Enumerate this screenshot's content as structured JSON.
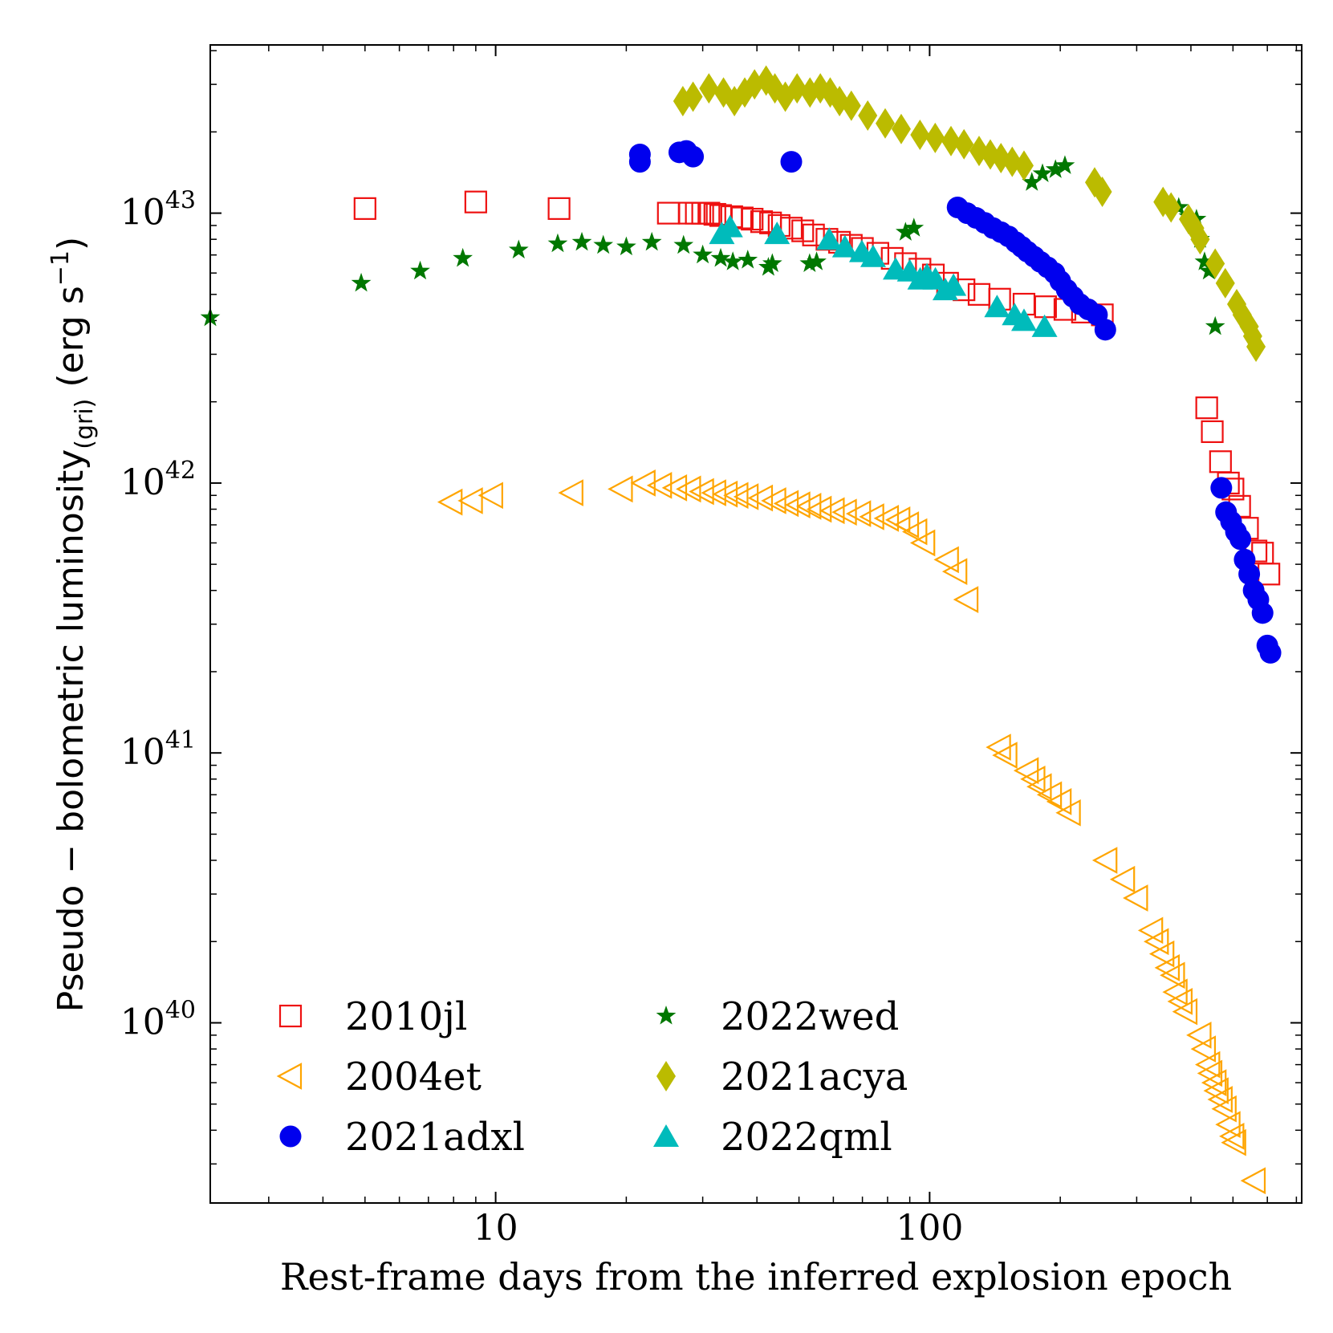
{
  "chart_data": {
    "type": "scatter",
    "xscale": "log",
    "yscale": "log",
    "xlim": [
      2.2,
      720
    ],
    "ylim": [
      2.15e+39,
      4.2e+43
    ],
    "xlabel": "Rest-frame days from the inferred explosion epoch",
    "ylabel": {
      "main": "Pseudo − bolometric luminosity",
      "sub": "(gri)",
      "unit_open": " (erg s",
      "unit_exp": "−1",
      "unit_close": ")"
    },
    "xticks": [
      {
        "value": 10,
        "label": "10"
      },
      {
        "value": 100,
        "label": "100"
      }
    ],
    "yticks": [
      {
        "value": 1e+40,
        "base": "10",
        "exp": "40"
      },
      {
        "value": 1e+41,
        "base": "10",
        "exp": "41"
      },
      {
        "value": 1e+42,
        "base": "10",
        "exp": "42"
      },
      {
        "value": 1e+43,
        "base": "10",
        "exp": "43"
      }
    ],
    "legend_position": "lower-left",
    "series": [
      {
        "name": "2010jl",
        "marker": "square-open",
        "color": "#ee1111",
        "points": [
          [
            5,
            1.04e+43
          ],
          [
            9,
            1.1e+43
          ],
          [
            14,
            1.04e+43
          ],
          [
            25,
            1e+43
          ],
          [
            28,
            1e+43
          ],
          [
            29,
            1e+43
          ],
          [
            30,
            1e+43
          ],
          [
            31,
            1e+43
          ],
          [
            32,
            9.9e+42
          ],
          [
            33,
            9.8e+42
          ],
          [
            35,
            9.7e+42
          ],
          [
            37,
            9.6e+42
          ],
          [
            39,
            9.5e+42
          ],
          [
            41,
            9.3e+42
          ],
          [
            43,
            9.2e+42
          ],
          [
            45,
            9e+42
          ],
          [
            48,
            8.8e+42
          ],
          [
            51,
            8.6e+42
          ],
          [
            54,
            8.3e+42
          ],
          [
            58,
            8e+42
          ],
          [
            62,
            7.8e+42
          ],
          [
            66,
            7.6e+42
          ],
          [
            70,
            7.4e+42
          ],
          [
            76,
            7.1e+42
          ],
          [
            82,
            6.8e+42
          ],
          [
            88,
            6.5e+42
          ],
          [
            95,
            6.2e+42
          ],
          [
            102,
            5.9e+42
          ],
          [
            110,
            5.5e+42
          ],
          [
            120,
            5.2e+42
          ],
          [
            130,
            5e+42
          ],
          [
            145,
            4.8e+42
          ],
          [
            165,
            4.6e+42
          ],
          [
            185,
            4.5e+42
          ],
          [
            205,
            4.4e+42
          ],
          [
            225,
            4.3e+42
          ],
          [
            250,
            4.2e+42
          ],
          [
            435,
            1.9e+42
          ],
          [
            448,
            1.55e+42
          ],
          [
            468,
            1.2e+42
          ],
          [
            488,
            1e+42
          ],
          [
            500,
            9.5e+41
          ],
          [
            518,
            8.2e+41
          ],
          [
            540,
            6.8e+41
          ],
          [
            565,
            5.6e+41
          ],
          [
            585,
            5.5e+41
          ],
          [
            605,
            4.6e+41
          ]
        ]
      },
      {
        "name": "2004et",
        "marker": "triangle-left-open",
        "color": "#ffa500",
        "points": [
          [
            7.9,
            8.5e+41
          ],
          [
            8.8,
            8.6e+41
          ],
          [
            9.8,
            9e+41
          ],
          [
            15,
            9.2e+41
          ],
          [
            19.5,
            9.5e+41
          ],
          [
            22,
            1e+42
          ],
          [
            24,
            9.8e+41
          ],
          [
            26,
            9.6e+41
          ],
          [
            28,
            9.5e+41
          ],
          [
            30,
            9.3e+41
          ],
          [
            32,
            9.2e+41
          ],
          [
            34,
            9.1e+41
          ],
          [
            36,
            9e+41
          ],
          [
            38,
            8.9e+41
          ],
          [
            41,
            8.8e+41
          ],
          [
            44,
            8.6e+41
          ],
          [
            47,
            8.4e+41
          ],
          [
            50,
            8.3e+41
          ],
          [
            53,
            8.2e+41
          ],
          [
            56,
            8e+41
          ],
          [
            60,
            7.9e+41
          ],
          [
            64,
            7.8e+41
          ],
          [
            69,
            7.7e+41
          ],
          [
            74,
            7.5e+41
          ],
          [
            80,
            7.4e+41
          ],
          [
            85,
            7.3e+41
          ],
          [
            89,
            7e+41
          ],
          [
            93,
            6.6e+41
          ],
          [
            97,
            6e+41
          ],
          [
            110,
            5.2e+41
          ],
          [
            115,
            4.7e+41
          ],
          [
            122,
            3.7e+41
          ],
          [
            145,
            1.05e+41
          ],
          [
            150,
            9.8e+40
          ],
          [
            168,
            8.6e+40
          ],
          [
            174,
            8e+40
          ],
          [
            180,
            7.5e+40
          ],
          [
            190,
            7e+40
          ],
          [
            200,
            6.6e+40
          ],
          [
            210,
            6e+40
          ],
          [
            255,
            4e+40
          ],
          [
            280,
            3.4e+40
          ],
          [
            300,
            2.9e+40
          ],
          [
            325,
            2.2e+40
          ],
          [
            335,
            2e+40
          ],
          [
            345,
            1.8e+40
          ],
          [
            355,
            1.6e+40
          ],
          [
            365,
            1.5e+40
          ],
          [
            370,
            1.3e+40
          ],
          [
            380,
            1.2e+40
          ],
          [
            390,
            1.1e+40
          ],
          [
            420,
            9e+39
          ],
          [
            430,
            8e+39
          ],
          [
            440,
            7e+39
          ],
          [
            445,
            6.5e+39
          ],
          [
            455,
            6e+39
          ],
          [
            460,
            5.6e+39
          ],
          [
            470,
            5.2e+39
          ],
          [
            480,
            4.8e+39
          ],
          [
            490,
            4.2e+39
          ],
          [
            500,
            3.8e+39
          ],
          [
            505,
            3.6e+39
          ],
          [
            560,
            2.6e+39
          ]
        ]
      },
      {
        "name": "2021adxl",
        "marker": "circle",
        "color": "#0000ee",
        "points": [
          [
            21.5,
            1.65e+43
          ],
          [
            21.5,
            1.55e+43
          ],
          [
            26.5,
            1.68e+43
          ],
          [
            27.5,
            1.7e+43
          ],
          [
            28.5,
            1.62e+43
          ],
          [
            48,
            1.55e+43
          ],
          [
            116,
            1.05e+43
          ],
          [
            122,
            1e+43
          ],
          [
            128,
            9.6e+42
          ],
          [
            134,
            9.2e+42
          ],
          [
            140,
            8.8e+42
          ],
          [
            146,
            8.5e+42
          ],
          [
            152,
            8.2e+42
          ],
          [
            158,
            7.8e+42
          ],
          [
            163,
            7.5e+42
          ],
          [
            168,
            7.2e+42
          ],
          [
            174,
            6.9e+42
          ],
          [
            180,
            6.6e+42
          ],
          [
            187,
            6.3e+42
          ],
          [
            194,
            6e+42
          ],
          [
            200,
            5.6e+42
          ],
          [
            207,
            5.2e+42
          ],
          [
            214,
            4.9e+42
          ],
          [
            222,
            4.6e+42
          ],
          [
            232,
            4.4e+42
          ],
          [
            243,
            4.2e+42
          ],
          [
            254,
            3.7e+42
          ],
          [
            470,
            9.6e+41
          ],
          [
            482,
            7.8e+41
          ],
          [
            495,
            7.2e+41
          ],
          [
            508,
            6.6e+41
          ],
          [
            520,
            6.2e+41
          ],
          [
            532,
            5.2e+41
          ],
          [
            545,
            4.6e+41
          ],
          [
            558,
            4e+41
          ],
          [
            572,
            3.7e+41
          ],
          [
            585,
            3.3e+41
          ],
          [
            600,
            2.5e+41
          ],
          [
            610,
            2.35e+41
          ]
        ]
      },
      {
        "name": "2022wed",
        "marker": "star",
        "color": "#007700",
        "points": [
          [
            2.2,
            4.1e+42
          ],
          [
            4.9,
            5.5e+42
          ],
          [
            6.7,
            6.1e+42
          ],
          [
            8.4,
            6.8e+42
          ],
          [
            11.3,
            7.3e+42
          ],
          [
            13.9,
            7.7e+42
          ],
          [
            15.8,
            7.8e+42
          ],
          [
            17.7,
            7.6e+42
          ],
          [
            20,
            7.5e+42
          ],
          [
            22.9,
            7.8e+42
          ],
          [
            27.1,
            7.6e+42
          ],
          [
            30,
            7e+42
          ],
          [
            33,
            6.8e+42
          ],
          [
            35.2,
            6.6e+42
          ],
          [
            38.1,
            6.7e+42
          ],
          [
            42.5,
            6.3e+42
          ],
          [
            43.4,
            6.5e+42
          ],
          [
            52.9,
            6.5e+42
          ],
          [
            54.9,
            6.6e+42
          ],
          [
            88,
            8.5e+42
          ],
          [
            92,
            8.8e+42
          ],
          [
            172,
            1.3e+43
          ],
          [
            182,
            1.4e+43
          ],
          [
            195,
            1.45e+43
          ],
          [
            205,
            1.5e+43
          ],
          [
            375,
            1.05e+43
          ],
          [
            395,
            9.7e+42
          ],
          [
            412,
            9.5e+42
          ],
          [
            420,
            8e+42
          ],
          [
            430,
            6.6e+42
          ],
          [
            440,
            6.1e+42
          ],
          [
            455,
            3.8e+42
          ]
        ]
      },
      {
        "name": "2021acya",
        "marker": "diamond",
        "color": "#bbbb00",
        "points": [
          [
            27,
            2.6e+43
          ],
          [
            28.5,
            2.7e+43
          ],
          [
            31,
            2.9e+43
          ],
          [
            33.5,
            2.8e+43
          ],
          [
            35.5,
            2.6e+43
          ],
          [
            37.5,
            2.8e+43
          ],
          [
            39.5,
            3e+43
          ],
          [
            42,
            3.1e+43
          ],
          [
            44,
            2.9e+43
          ],
          [
            46.5,
            2.7e+43
          ],
          [
            49.5,
            2.9e+43
          ],
          [
            53,
            2.8e+43
          ],
          [
            56,
            2.9e+43
          ],
          [
            59,
            2.8e+43
          ],
          [
            62,
            2.6e+43
          ],
          [
            66,
            2.5e+43
          ],
          [
            72,
            2.3e+43
          ],
          [
            79,
            2.15e+43
          ],
          [
            86,
            2.05e+43
          ],
          [
            95,
            1.95e+43
          ],
          [
            103,
            1.9e+43
          ],
          [
            112,
            1.85e+43
          ],
          [
            120,
            1.8e+43
          ],
          [
            130,
            1.7e+43
          ],
          [
            138,
            1.65e+43
          ],
          [
            146,
            1.6e+43
          ],
          [
            155,
            1.55e+43
          ],
          [
            165,
            1.5e+43
          ],
          [
            240,
            1.3e+43
          ],
          [
            250,
            1.2e+43
          ],
          [
            345,
            1.1e+43
          ],
          [
            360,
            1.05e+43
          ],
          [
            395,
            9.5e+42
          ],
          [
            408,
            8.8e+42
          ],
          [
            420,
            8e+42
          ],
          [
            455,
            6.5e+42
          ],
          [
            480,
            5.5e+42
          ],
          [
            510,
            4.6e+42
          ],
          [
            525,
            4.2e+42
          ],
          [
            545,
            3.8e+42
          ],
          [
            555,
            3.5e+42
          ],
          [
            565,
            3.2e+42
          ]
        ]
      },
      {
        "name": "2022qml",
        "marker": "triangle-up",
        "color": "#00bbbb",
        "points": [
          [
            33.2,
            8.4e+42
          ],
          [
            34.7,
            8.9e+42
          ],
          [
            44.5,
            8.4e+42
          ],
          [
            58.7,
            8e+42
          ],
          [
            63.8,
            7.5e+42
          ],
          [
            69.8,
            7.2e+42
          ],
          [
            74.1,
            6.9e+42
          ],
          [
            83.5,
            6.2e+42
          ],
          [
            90,
            6.1e+42
          ],
          [
            95.1,
            5.7e+42
          ],
          [
            98.6,
            5.9e+42
          ],
          [
            103.1,
            5.7e+42
          ],
          [
            108.7,
            5.2e+42
          ],
          [
            113.5,
            5.4e+42
          ],
          [
            143,
            4.5e+42
          ],
          [
            157,
            4.2e+42
          ],
          [
            165,
            4e+42
          ],
          [
            184,
            3.8e+42
          ]
        ]
      }
    ]
  }
}
